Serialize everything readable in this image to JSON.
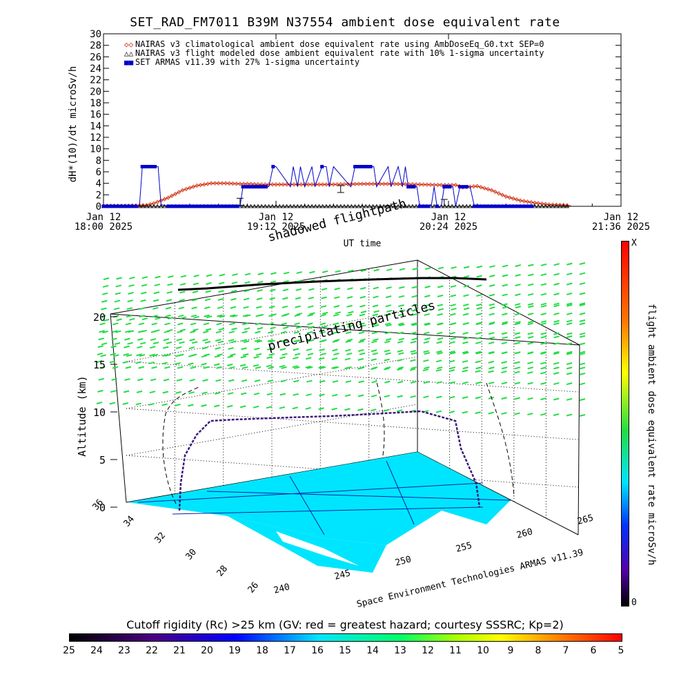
{
  "title": "SET_RAD_FM7011  B39M N37554 ambient dose equivalent rate",
  "top_chart_data": {
    "type": "line",
    "ylabel": "dH*(10)/dt microSv/h",
    "xlabel": "UT time",
    "ylim": [
      0,
      30
    ],
    "yticks": [
      0,
      2,
      4,
      6,
      8,
      10,
      12,
      14,
      16,
      18,
      20,
      22,
      24,
      26,
      28,
      30
    ],
    "xlim_hours": [
      18.0,
      21.6
    ],
    "xticks": [
      {
        "line1": "Jan 12",
        "line2": "18:00 2025",
        "hour": 18.0
      },
      {
        "line1": "Jan 12",
        "line2": "19:12 2025",
        "hour": 19.2
      },
      {
        "line1": "Jan 12",
        "line2": "20:24 2025",
        "hour": 20.4
      },
      {
        "line1": "Jan 12",
        "line2": "21:36 2025",
        "hour": 21.6
      }
    ],
    "legend": [
      {
        "symbol": "◇",
        "color": "#cc2200",
        "label": "NAIRAS v3 climatological ambient dose equivalent rate using AmbDoseEq_G0.txt SEP=0"
      },
      {
        "symbol": "△",
        "color": "#000000",
        "label": "NAIRAS v3 flight modeled dose ambient equivalent rate with 10% 1-sigma uncertainty"
      },
      {
        "symbol": "■",
        "color": "#0000cc",
        "label": "SET ARMAS v11.39 with 27% 1-sigma uncertainty"
      }
    ],
    "series": [
      {
        "name": "NAIRAS v3 climatological ambient dose equivalent rate using AmbDoseEq_G0.txt SEP=0",
        "color": "#cc2200",
        "x": [
          18.0,
          18.2,
          18.3,
          18.35,
          18.45,
          18.55,
          18.65,
          18.75,
          18.85,
          18.95,
          19.0,
          19.1,
          19.2,
          19.4,
          19.6,
          19.8,
          20.0,
          20.2,
          20.35,
          20.45,
          20.5,
          20.6,
          20.7,
          20.8,
          20.9,
          21.0,
          21.1,
          21.2,
          21.25
        ],
        "y": [
          0.1,
          0.1,
          0.2,
          0.5,
          1.5,
          2.8,
          3.6,
          4.0,
          4.0,
          3.9,
          3.9,
          3.8,
          3.8,
          3.8,
          3.8,
          3.9,
          3.9,
          3.8,
          3.7,
          3.7,
          3.3,
          3.5,
          2.8,
          1.7,
          1.0,
          0.6,
          0.3,
          0.2,
          0.1
        ]
      },
      {
        "name": "NAIRAS v3 flight modeled dose ambient equivalent rate with 10% 1-sigma uncertainty",
        "color": "#000000",
        "x": [
          18.0,
          18.3,
          18.6,
          18.75,
          18.95,
          19.05,
          19.3,
          19.5,
          19.6,
          19.9,
          20.1,
          20.35,
          20.5,
          20.65,
          21.0,
          21.25
        ],
        "y": [
          0,
          0,
          0,
          0,
          0,
          0,
          0,
          0,
          0,
          0,
          0,
          0,
          0,
          0,
          0,
          0
        ],
        "error_bars": [
          {
            "x": 18.95,
            "y": 0.8
          },
          {
            "x": 19.65,
            "y": 3.0
          },
          {
            "x": 20.37,
            "y": 0.6
          }
        ]
      },
      {
        "name": "SET ARMAS v11.39 with 27% 1-sigma uncertainty",
        "color": "#0000cc",
        "x": [
          18.0,
          18.2,
          18.25,
          18.27,
          18.38,
          18.4,
          18.45,
          18.95,
          18.97,
          19.15,
          19.18,
          19.2,
          19.3,
          19.32,
          19.35,
          19.37,
          19.4,
          19.45,
          19.47,
          19.52,
          19.55,
          19.57,
          19.6,
          19.72,
          19.75,
          19.88,
          19.9,
          19.98,
          20.0,
          20.05,
          20.08,
          20.1,
          20.12,
          20.18,
          20.2,
          20.28,
          20.3,
          20.32,
          20.35,
          20.37,
          20.43,
          20.45,
          20.48,
          20.55,
          20.58,
          20.6,
          21.0
        ],
        "y": [
          0,
          0,
          0,
          6.9,
          6.9,
          0.3,
          0,
          0,
          3.4,
          3.4,
          6.9,
          6.9,
          3.4,
          6.9,
          3.4,
          6.9,
          3.4,
          6.9,
          3.4,
          6.9,
          6.9,
          3.4,
          6.9,
          3.4,
          6.9,
          6.9,
          3.4,
          6.9,
          3.4,
          6.9,
          3.4,
          6.9,
          3.4,
          3.4,
          0,
          0,
          3.4,
          0,
          0,
          3.4,
          3.4,
          0,
          3.4,
          3.4,
          0,
          0,
          0
        ]
      }
    ]
  },
  "scene": {
    "shadowed_label": "shadowed flightpath",
    "precip_label": "precipitating particles",
    "zlabel": "Altitude (km)",
    "zticks": [
      "0",
      "5",
      "10",
      "15",
      "20"
    ],
    "lat_ticks": [
      "36",
      "34",
      "32",
      "30",
      "28",
      "26"
    ],
    "lon_ticks": [
      "240",
      "245",
      "250",
      "255",
      "260",
      "265"
    ],
    "credit": "Space Environment Technologies ARMAS v11.39"
  },
  "vertical_colorbar": {
    "title": "flight ambient dose equivalent rate microSv/h",
    "top_label": "X",
    "bottom_label": "0"
  },
  "horizontal_colorbar": {
    "title": "Cutoff rigidity (Rc) >25 km (GV: red = greatest hazard; courtesy SSSRC; Kp=2)",
    "labels": [
      "25",
      "24",
      "23",
      "22",
      "21",
      "20",
      "19",
      "18",
      "17",
      "16",
      "15",
      "14",
      "13",
      "12",
      "11",
      "10",
      "9",
      "8",
      "7",
      "6",
      "5"
    ]
  },
  "colors": {
    "surface": "#00e5ff",
    "grid_markers": "#22dd44",
    "flight_track": "#3a1a7a"
  }
}
